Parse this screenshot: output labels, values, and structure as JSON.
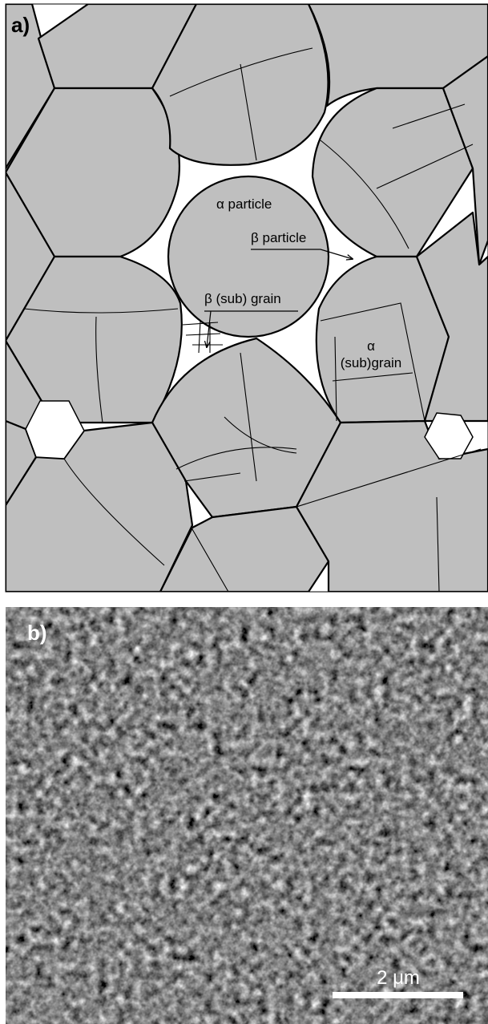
{
  "panel_a": {
    "label": "a)",
    "alpha_particle": "α particle",
    "beta_particle": "β particle",
    "beta_subgrain": "β (sub) grain",
    "alpha_subgrain_symbol": "α",
    "alpha_subgrain": "(sub)grain"
  },
  "panel_b": {
    "label": "b)",
    "scale_bar": "2 μm"
  }
}
